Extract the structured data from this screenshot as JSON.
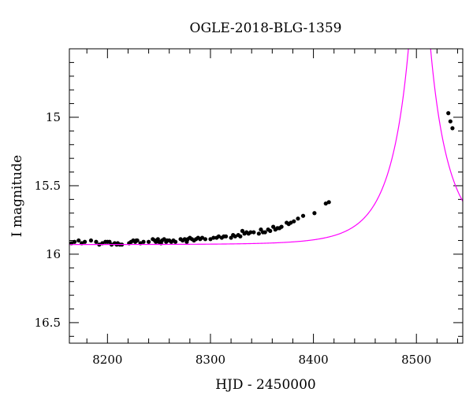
{
  "chart_data": {
    "type": "scatter",
    "title": "OGLE-2018-BLG-1359",
    "xlabel": "HJD - 2450000",
    "ylabel": "I magnitude",
    "xlim": [
      8163,
      8545
    ],
    "ylim": [
      14.5,
      16.65
    ],
    "y_inverted": true,
    "x_major_ticks": [
      8200,
      8300,
      8400,
      8500
    ],
    "x_tick_labels": [
      "8200",
      "8300",
      "8400",
      "8500"
    ],
    "x_minor_step": 20,
    "y_major_ticks": [
      15,
      15.5,
      16,
      16.5
    ],
    "y_tick_labels": [
      "15",
      "15.5",
      "16",
      "16.5"
    ],
    "y_minor_step": 0.1,
    "grid": false,
    "point_color": "#000000",
    "model_color": "#ff00ff",
    "series": [
      {
        "type": "scatter",
        "points": [
          [
            8165,
            15.92
          ],
          [
            8168,
            15.91
          ],
          [
            8172,
            15.9
          ],
          [
            8175,
            15.92
          ],
          [
            8178,
            15.91
          ],
          [
            8184,
            15.9
          ],
          [
            8189,
            15.91
          ],
          [
            8192,
            15.93
          ],
          [
            8195,
            15.92
          ],
          [
            8198,
            15.91
          ],
          [
            8200,
            15.91
          ],
          [
            8202,
            15.91
          ],
          [
            8204,
            15.93
          ],
          [
            8207,
            15.92
          ],
          [
            8209,
            15.93
          ],
          [
            8210,
            15.92
          ],
          [
            8212,
            15.93
          ],
          [
            8214,
            15.93
          ],
          [
            8221,
            15.92
          ],
          [
            8223,
            15.91
          ],
          [
            8225,
            15.9
          ],
          [
            8227,
            15.91
          ],
          [
            8228,
            15.9
          ],
          [
            8229,
            15.9
          ],
          [
            8232,
            15.92
          ],
          [
            8235,
            15.91
          ],
          [
            8240,
            15.91
          ],
          [
            8244,
            15.89
          ],
          [
            8246,
            15.9
          ],
          [
            8247,
            15.91
          ],
          [
            8249,
            15.89
          ],
          [
            8250,
            15.91
          ],
          [
            8252,
            15.92
          ],
          [
            8253,
            15.9
          ],
          [
            8255,
            15.89
          ],
          [
            8257,
            15.91
          ],
          [
            8258,
            15.9
          ],
          [
            8260,
            15.9
          ],
          [
            8262,
            15.91
          ],
          [
            8264,
            15.9
          ],
          [
            8266,
            15.91
          ],
          [
            8271,
            15.89
          ],
          [
            8273,
            15.9
          ],
          [
            8275,
            15.89
          ],
          [
            8277,
            15.91
          ],
          [
            8278,
            15.89
          ],
          [
            8280,
            15.88
          ],
          [
            8282,
            15.89
          ],
          [
            8284,
            15.9
          ],
          [
            8286,
            15.89
          ],
          [
            8288,
            15.88
          ],
          [
            8290,
            15.89
          ],
          [
            8292,
            15.88
          ],
          [
            8295,
            15.89
          ],
          [
            8300,
            15.89
          ],
          [
            8303,
            15.88
          ],
          [
            8306,
            15.88
          ],
          [
            8308,
            15.87
          ],
          [
            8311,
            15.88
          ],
          [
            8313,
            15.87
          ],
          [
            8315,
            15.87
          ],
          [
            8320,
            15.88
          ],
          [
            8322,
            15.86
          ],
          [
            8324,
            15.87
          ],
          [
            8327,
            15.86
          ],
          [
            8329,
            15.87
          ],
          [
            8331,
            15.83
          ],
          [
            8333,
            15.85
          ],
          [
            8335,
            15.84
          ],
          [
            8337,
            15.85
          ],
          [
            8339,
            15.84
          ],
          [
            8342,
            15.84
          ],
          [
            8347,
            15.85
          ],
          [
            8349,
            15.82
          ],
          [
            8351,
            15.84
          ],
          [
            8353,
            15.84
          ],
          [
            8356,
            15.82
          ],
          [
            8358,
            15.83
          ],
          [
            8361,
            15.8
          ],
          [
            8363,
            15.82
          ],
          [
            8365,
            15.81
          ],
          [
            8367,
            15.81
          ],
          [
            8369,
            15.8
          ],
          [
            8374,
            15.77
          ],
          [
            8376,
            15.78
          ],
          [
            8378,
            15.77
          ],
          [
            8381,
            15.76
          ],
          [
            8385,
            15.74
          ],
          [
            8390,
            15.72
          ],
          [
            8401,
            15.7
          ],
          [
            8412,
            15.63
          ],
          [
            8415,
            15.62
          ],
          [
            8531,
            14.97
          ],
          [
            8533,
            15.03
          ],
          [
            8535,
            15.08
          ]
        ]
      },
      {
        "type": "line",
        "name": "",
        "model": {
          "t0": 8503,
          "u0": 0.1,
          "tE": 42,
          "I_base": 15.93
        }
      }
    ]
  }
}
